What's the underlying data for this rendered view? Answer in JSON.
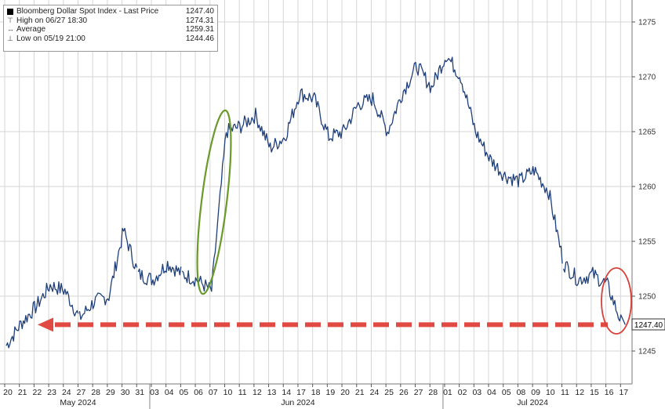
{
  "legend": {
    "title": "Bloomberg Dollar Spot Index - Last Price",
    "title_value": "1247.40",
    "high_label": "High on 06/27 18:30",
    "high_value": "1274.31",
    "avg_label": "Average",
    "avg_value": "1259.31",
    "low_label": "Low on 05/19 21:00",
    "low_value": "1244.46"
  },
  "last_price_label": "1247.40",
  "colors": {
    "line": "#1f3f7a",
    "grid": "#d6d6d6",
    "green_ellipse": "#6a9a2a",
    "red_ellipse": "#d9403a",
    "arrow": "#e04a43"
  },
  "chart_data": {
    "type": "line",
    "ylim": [
      1242,
      1277
    ],
    "yticks": [
      1245,
      1250,
      1255,
      1260,
      1265,
      1270,
      1275
    ],
    "grid": "on",
    "x_ticks": [
      "20",
      "21",
      "22",
      "23",
      "24",
      "27",
      "28",
      "29",
      "30",
      "31",
      "03",
      "04",
      "05",
      "06",
      "07",
      "10",
      "11",
      "12",
      "13",
      "14",
      "17",
      "18",
      "19",
      "20",
      "21",
      "24",
      "25",
      "26",
      "27",
      "28",
      "01",
      "02",
      "03",
      "04",
      "05",
      "08",
      "09",
      "10",
      "11",
      "12",
      "15",
      "16",
      "17"
    ],
    "months": [
      "May 2024",
      "Jun 2024",
      "Jul 2024"
    ],
    "series": [
      {
        "x": [
          "05/20",
          "05/21",
          "05/22",
          "05/23",
          "05/24",
          "05/27",
          "05/28",
          "05/29",
          "05/30",
          "05/31",
          "06/03",
          "06/04",
          "06/05",
          "06/06",
          "06/07",
          "06/10",
          "06/11",
          "06/12",
          "06/13",
          "06/14",
          "06/17",
          "06/18",
          "06/19",
          "06/20",
          "06/21",
          "06/24",
          "06/25",
          "06/26",
          "06/27",
          "06/28",
          "07/01",
          "07/02",
          "07/03",
          "07/04",
          "07/05",
          "07/08",
          "07/09",
          "07/10",
          "07/11",
          "07/12",
          "07/15",
          "07/16",
          "07/17"
        ],
        "values": [
          1245.5,
          1247.5,
          1249.0,
          1251.0,
          1250.5,
          1248.0,
          1249.5,
          1250.0,
          1256.0,
          1252.0,
          1251.5,
          1253.0,
          1252.0,
          1251.5,
          1250.5,
          1265.0,
          1265.5,
          1266.5,
          1263.5,
          1264.5,
          1268.5,
          1268.0,
          1264.5,
          1265.0,
          1267.5,
          1268.0,
          1265.0,
          1268.5,
          1271.0,
          1269.0,
          1272.0,
          1270.0,
          1265.0,
          1262.5,
          1261.0,
          1260.5,
          1261.5,
          1259.5,
          1253.0,
          1251.5,
          1252.0,
          1251.0,
          1247.4
        ]
      }
    ]
  }
}
